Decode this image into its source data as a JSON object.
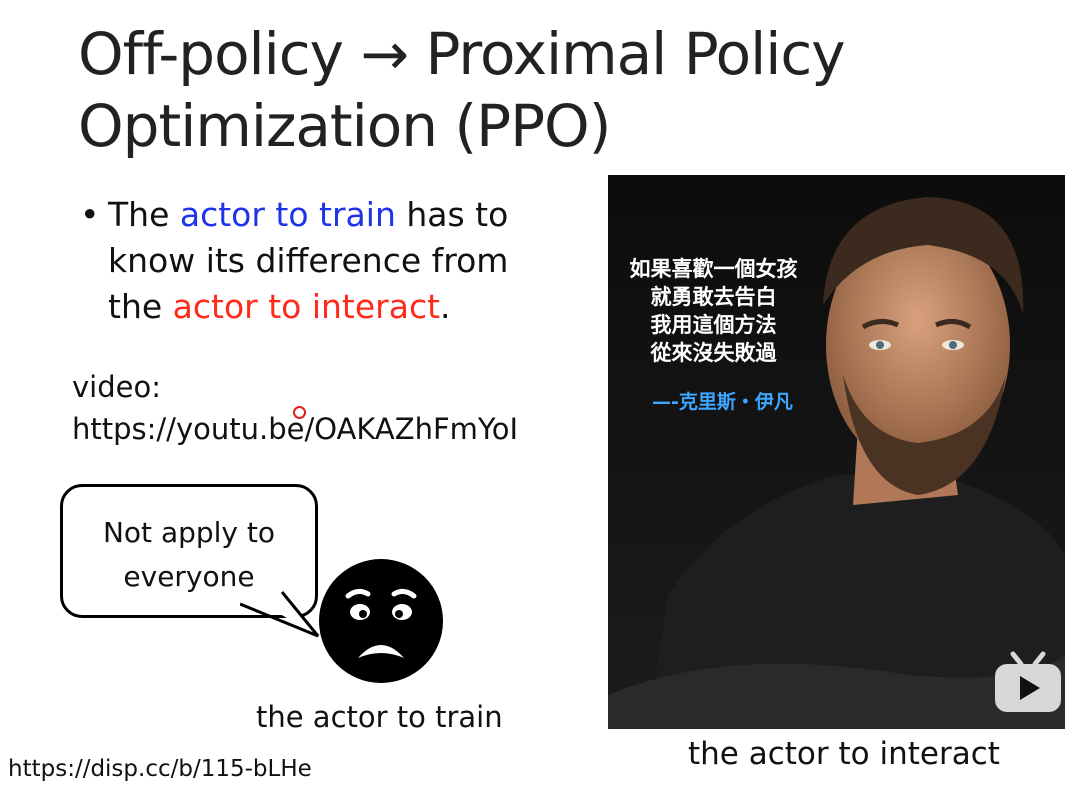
{
  "slide": {
    "title_line1": "Off-policy → Proximal Policy",
    "title_line2": "Optimization (PPO)",
    "bullet": {
      "marker": "•",
      "part1": "The ",
      "part2_blue": "actor to train",
      "part3": " has to",
      "line2": "know its difference from",
      "line3_pre": "the ",
      "line3_red": "actor to interact",
      "line3_post": "."
    },
    "video_label": "video:",
    "video_url": "https://youtu.be/OAKAZhFmYoI",
    "bubble_line1": "Not apply to",
    "bubble_line2": "everyone",
    "caption_train": "the actor to train",
    "caption_interact": "the actor to interact",
    "footer_url": "https://disp.cc/b/115-bLHe"
  },
  "photo": {
    "quote_lines": [
      "如果喜歡一個女孩",
      "就勇敢去告白",
      "我用這個方法",
      "從來沒失敗過"
    ],
    "attribution": "—-克里斯・伊凡"
  },
  "colors": {
    "blue": "#1f33e8",
    "red": "#ff2a1a",
    "accent_attribution": "#3ea6ff"
  },
  "icons": {
    "face": "angry-face-icon",
    "play": "play-button-icon"
  }
}
